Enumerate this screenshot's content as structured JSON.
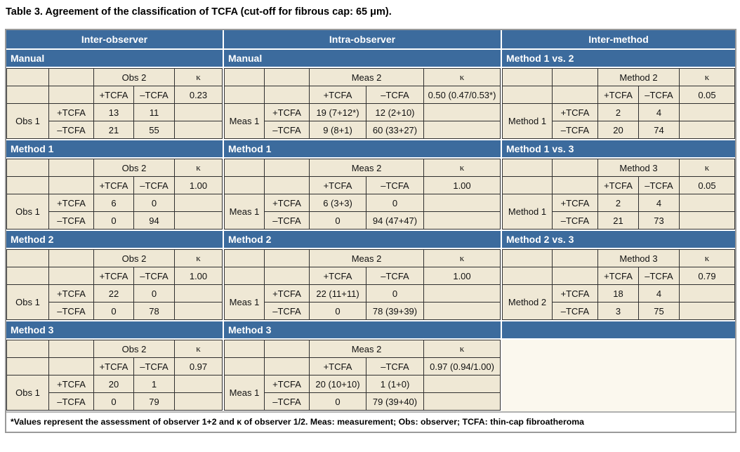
{
  "title": "Table 3. Agreement of the classification of TCFA (cut-off for fibrous cap: 65 μm).",
  "footnote": "*Values represent the assessment of observer 1+2 and κ of observer 1/2. Meas: measurement; Obs: observer; TCFA: thin-cap fibroatheroma",
  "labels": {
    "plus": "+TCFA",
    "minus": "–TCFA",
    "kappa": "κ"
  },
  "colors": {
    "header_blue": "#3c6b9d",
    "cell_beige": "#efe8d5",
    "empty_cream": "#fbf8ee",
    "border_dark": "#2f2f2f"
  },
  "sections": [
    {
      "header": "Inter-observer",
      "blocks": [
        {
          "label": "Manual",
          "col_group": "Obs 2",
          "row_group": "Obs 1",
          "kappa": "0.23",
          "cells": [
            [
              "13",
              "11"
            ],
            [
              "21",
              "55"
            ]
          ]
        },
        {
          "label": "Method 1",
          "col_group": "Obs 2",
          "row_group": "Obs 1",
          "kappa": "1.00",
          "cells": [
            [
              "6",
              "0"
            ],
            [
              "0",
              "94"
            ]
          ]
        },
        {
          "label": "Method 2",
          "col_group": "Obs 2",
          "row_group": "Obs 1",
          "kappa": "1.00",
          "cells": [
            [
              "22",
              "0"
            ],
            [
              "0",
              "78"
            ]
          ]
        },
        {
          "label": "Method 3",
          "col_group": "Obs 2",
          "row_group": "Obs 1",
          "kappa": "0.97",
          "cells": [
            [
              "20",
              "1"
            ],
            [
              "0",
              "79"
            ]
          ]
        }
      ]
    },
    {
      "header": "Intra-observer",
      "blocks": [
        {
          "label": "Manual",
          "col_group": "Meas 2",
          "row_group": "Meas 1",
          "kappa": "0.50 (0.47/0.53*)",
          "cells": [
            [
              "19 (7+12*)",
              "12 (2+10)"
            ],
            [
              "9 (8+1)",
              "60 (33+27)"
            ]
          ]
        },
        {
          "label": "Method 1",
          "col_group": "Meas 2",
          "row_group": "Meas 1",
          "kappa": "1.00",
          "cells": [
            [
              "6 (3+3)",
              "0"
            ],
            [
              "0",
              "94 (47+47)"
            ]
          ]
        },
        {
          "label": "Method 2",
          "col_group": "Meas 2",
          "row_group": "Meas 1",
          "kappa": "1.00",
          "cells": [
            [
              "22 (11+11)",
              "0"
            ],
            [
              "0",
              "78 (39+39)"
            ]
          ]
        },
        {
          "label": "Method 3",
          "col_group": "Meas 2",
          "row_group": "Meas 1",
          "kappa": "0.97 (0.94/1.00)",
          "cells": [
            [
              "20 (10+10)",
              "1 (1+0)"
            ],
            [
              "0",
              "79 (39+40)"
            ]
          ]
        }
      ]
    },
    {
      "header": "Inter-method",
      "blocks": [
        {
          "label": "Method 1 vs. 2",
          "col_group": "Method 2",
          "row_group": "Method 1",
          "kappa": "0.05",
          "cells": [
            [
              "2",
              "4"
            ],
            [
              "20",
              "74"
            ]
          ]
        },
        {
          "label": "Method 1 vs. 3",
          "col_group": "Method 3",
          "row_group": "Method 1",
          "kappa": "0.05",
          "cells": [
            [
              "2",
              "4"
            ],
            [
              "21",
              "73"
            ]
          ]
        },
        {
          "label": "Method 2 vs. 3",
          "col_group": "Method 3",
          "row_group": "Method 2",
          "kappa": "0.79",
          "cells": [
            [
              "18",
              "4"
            ],
            [
              "3",
              "75"
            ]
          ]
        },
        {
          "label": ""
        }
      ]
    }
  ]
}
